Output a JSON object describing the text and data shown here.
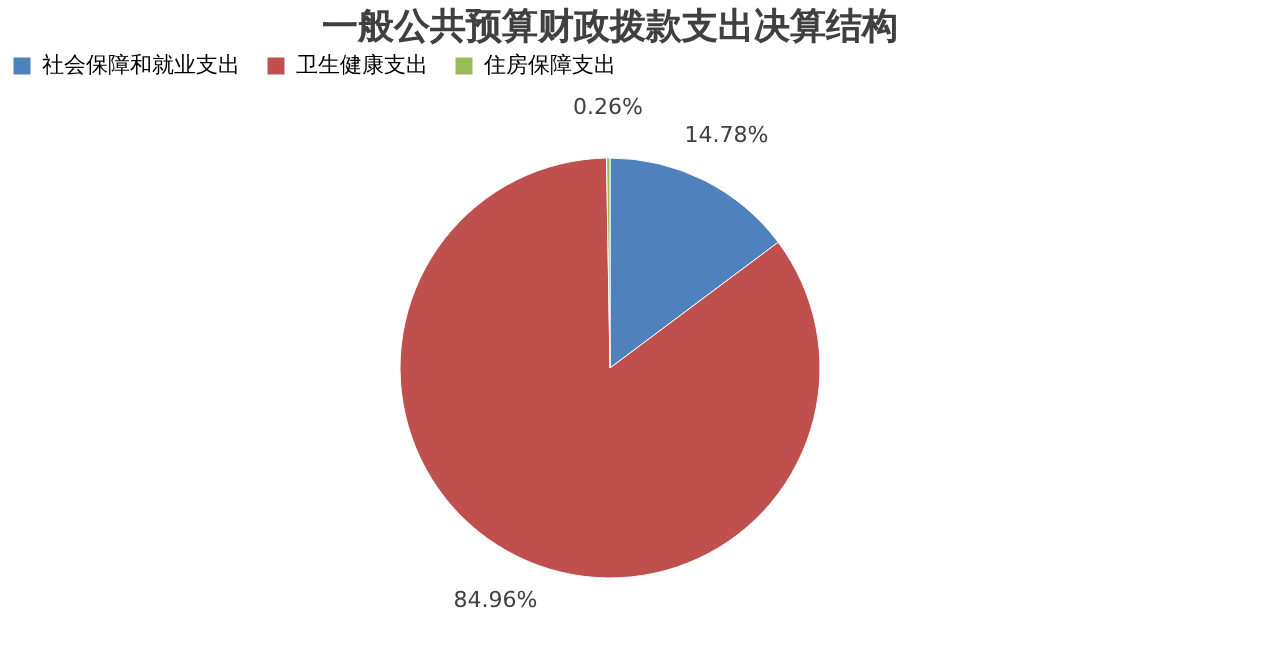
{
  "chart_data": {
    "type": "pie",
    "title": "一般公共预算财政拨款支出决算结构",
    "categories": [
      "社会保障和就业支出",
      "卫生健康支出",
      "住房保障支出"
    ],
    "values": [
      14.78,
      84.96,
      0.26
    ],
    "colors": [
      "#4f81bd",
      "#c0504d",
      "#9bbb59"
    ],
    "value_labels": [
      "14.78%",
      "84.96%",
      "0.26%"
    ],
    "legend": "top"
  }
}
